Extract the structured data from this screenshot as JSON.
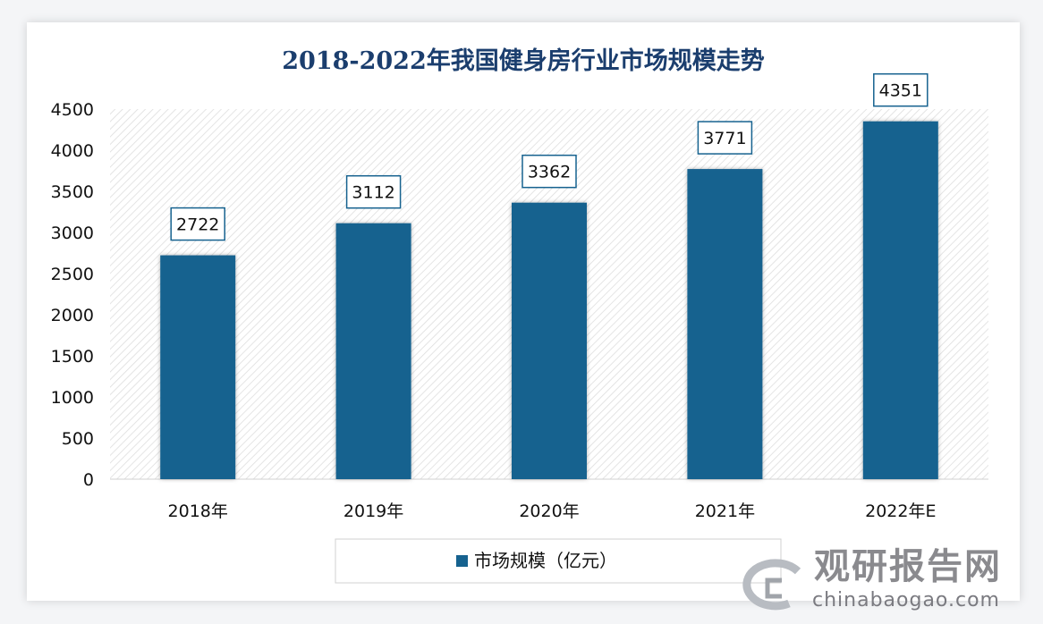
{
  "chart_data": {
    "type": "bar",
    "title": "2018-2022年我国健身房行业市场规模走势",
    "categories": [
      "2018年",
      "2019年",
      "2020年",
      "2021年",
      "2022年E"
    ],
    "series": [
      {
        "name": "市场规模（亿元）",
        "values": [
          2722,
          3112,
          3362,
          3771,
          4351
        ]
      }
    ],
    "ylim": [
      0,
      4500
    ],
    "yticks": [
      0,
      500,
      1000,
      1500,
      2000,
      2500,
      3000,
      3500,
      4000,
      4500
    ],
    "grid": false,
    "background": "hatched",
    "legend": "bottom",
    "bar_color": "#16628f",
    "title_color": "#1b3e6e"
  },
  "watermark": {
    "cn": "观研报告网",
    "en": "chinabaogao.com"
  }
}
